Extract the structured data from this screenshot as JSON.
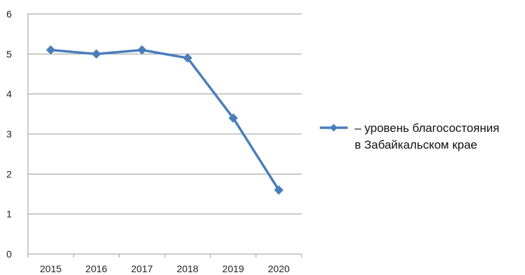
{
  "chart_data": {
    "type": "line",
    "categories": [
      "2015",
      "2016",
      "2017",
      "2018",
      "2019",
      "2020"
    ],
    "series": [
      {
        "name": "– уровень благосостояния в Забайкальском крае",
        "name_lines": [
          "– уровень благосостояния",
          "в Забайкальском крае"
        ],
        "values": [
          5.1,
          5.0,
          5.1,
          4.9,
          3.4,
          1.6
        ],
        "color": "#4a7ebb",
        "marker": "diamond"
      }
    ],
    "y_ticks": [
      "0",
      "1",
      "2",
      "3",
      "4",
      "5",
      "6"
    ],
    "ylim": [
      0,
      6
    ],
    "grid": "horizontal",
    "legend_position": "right",
    "title": "",
    "xlabel": "",
    "ylabel": ""
  }
}
